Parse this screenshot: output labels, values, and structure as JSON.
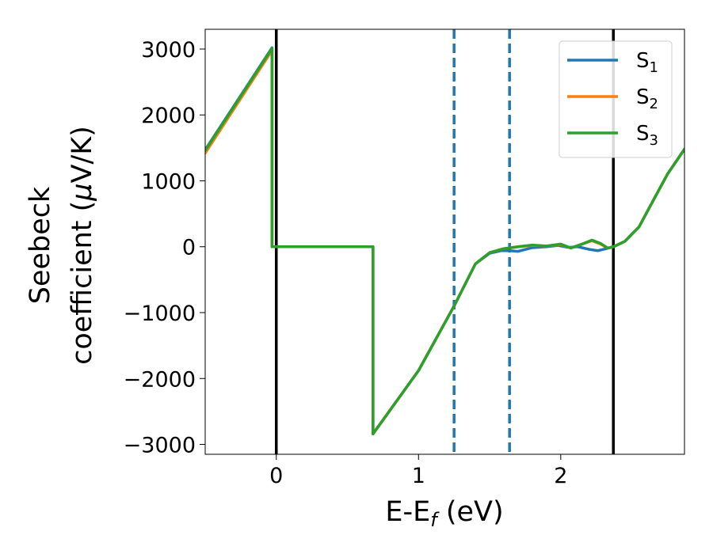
{
  "chart_data": {
    "type": "line",
    "xlabel": {
      "main": "E-E",
      "sub": "f",
      "rest": " (eV)"
    },
    "ylabel": {
      "line1": "Seebeck",
      "line2_pre": "coefficient  (",
      "line2_mu": "μ",
      "line2_post": "V/K)"
    },
    "xlim": [
      -0.5,
      2.87
    ],
    "ylim": [
      -3150,
      3300
    ],
    "xticks": [
      0,
      1,
      2
    ],
    "xtick_labels": [
      "0",
      "1",
      "2"
    ],
    "yticks": [
      3000,
      2000,
      1000,
      0,
      -1000,
      -2000,
      -3000
    ],
    "ytick_labels": [
      "3000",
      "2000",
      "1000",
      "0",
      "−1000",
      "−2000",
      "−3000"
    ],
    "vertical_lines": [
      {
        "x": 0.0,
        "color": "#000000",
        "style": "solid"
      },
      {
        "x": 2.37,
        "color": "#000000",
        "style": "solid"
      },
      {
        "x": 1.25,
        "color": "#1f77b4",
        "style": "dashed"
      },
      {
        "x": 1.64,
        "color": "#1f77b4",
        "style": "dashed"
      }
    ],
    "legend_position": "top-right",
    "series": [
      {
        "name": "S",
        "sub": "1",
        "color": "#1f77b4",
        "points": [
          [
            -0.5,
            1470
          ],
          [
            -0.03,
            3020
          ],
          [
            -0.03,
            0
          ],
          [
            0.68,
            0
          ],
          [
            0.68,
            -2840
          ],
          [
            1.0,
            -1880
          ],
          [
            1.25,
            -900
          ],
          [
            1.4,
            -260
          ],
          [
            1.5,
            -100
          ],
          [
            1.58,
            -60
          ],
          [
            1.64,
            -60
          ],
          [
            1.7,
            -70
          ],
          [
            1.8,
            -15
          ],
          [
            1.9,
            0
          ],
          [
            1.98,
            20
          ],
          [
            2.05,
            -10
          ],
          [
            2.12,
            0
          ],
          [
            2.2,
            -40
          ],
          [
            2.26,
            -60
          ],
          [
            2.32,
            -30
          ],
          [
            2.37,
            0
          ],
          [
            2.45,
            80
          ],
          [
            2.55,
            300
          ],
          [
            2.65,
            700
          ],
          [
            2.75,
            1100
          ],
          [
            2.87,
            1480
          ]
        ]
      },
      {
        "name": "S",
        "sub": "2",
        "color": "#ff7f0e",
        "points": [
          [
            -0.5,
            1420
          ],
          [
            -0.03,
            2980
          ],
          [
            -0.03,
            0
          ],
          [
            0.68,
            0
          ],
          [
            0.68,
            -2840
          ],
          [
            1.0,
            -1880
          ],
          [
            1.25,
            -900
          ],
          [
            1.4,
            -260
          ],
          [
            1.5,
            -90
          ],
          [
            1.6,
            -30
          ],
          [
            1.7,
            0
          ],
          [
            1.8,
            20
          ],
          [
            1.9,
            10
          ],
          [
            2.0,
            35
          ],
          [
            2.07,
            -20
          ],
          [
            2.15,
            40
          ],
          [
            2.22,
            90
          ],
          [
            2.28,
            40
          ],
          [
            2.33,
            -20
          ],
          [
            2.37,
            0
          ],
          [
            2.45,
            80
          ],
          [
            2.55,
            300
          ],
          [
            2.65,
            700
          ],
          [
            2.75,
            1100
          ],
          [
            2.87,
            1480
          ]
        ]
      },
      {
        "name": "S",
        "sub": "3",
        "color": "#2ca02c",
        "points": [
          [
            -0.5,
            1460
          ],
          [
            -0.03,
            3010
          ],
          [
            -0.03,
            0
          ],
          [
            0.68,
            0
          ],
          [
            0.68,
            -2840
          ],
          [
            1.0,
            -1880
          ],
          [
            1.25,
            -900
          ],
          [
            1.4,
            -260
          ],
          [
            1.5,
            -90
          ],
          [
            1.6,
            -30
          ],
          [
            1.7,
            0
          ],
          [
            1.8,
            25
          ],
          [
            1.9,
            10
          ],
          [
            2.0,
            40
          ],
          [
            2.07,
            -20
          ],
          [
            2.15,
            40
          ],
          [
            2.22,
            100
          ],
          [
            2.28,
            50
          ],
          [
            2.33,
            -20
          ],
          [
            2.37,
            0
          ],
          [
            2.45,
            80
          ],
          [
            2.55,
            300
          ],
          [
            2.65,
            700
          ],
          [
            2.75,
            1100
          ],
          [
            2.87,
            1480
          ]
        ]
      }
    ]
  }
}
